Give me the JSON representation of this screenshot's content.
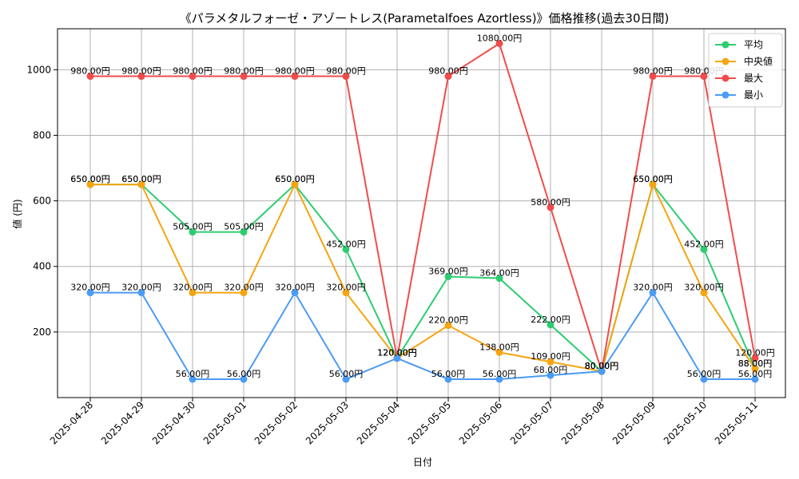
{
  "chart_data": {
    "type": "line",
    "title": "《パラメタルフォーゼ・アゾートレス(Parametalfoes Azortless)》価格推移(過去30日間)",
    "xlabel": "日付",
    "ylabel": "値 (円)",
    "label_suffix": "円",
    "categories": [
      "2025-04-28",
      "2025-04-29",
      "2025-04-30",
      "2025-05-01",
      "2025-05-02",
      "2025-05-03",
      "2025-05-04",
      "2025-05-05",
      "2025-05-06",
      "2025-05-07",
      "2025-05-08",
      "2025-05-09",
      "2025-05-10",
      "2025-05-11"
    ],
    "yticks": [
      200,
      400,
      600,
      800,
      1000
    ],
    "ylim": [
      0,
      1125
    ],
    "grid": true,
    "legend_position": "top-right",
    "series": [
      {
        "name": "平均",
        "color": "#2ecc71",
        "values": [
          650,
          650,
          505,
          505,
          650,
          452,
          120,
          369,
          364,
          222,
          80,
          650,
          452,
          88
        ]
      },
      {
        "name": "中央値",
        "color": "#f5a511",
        "values": [
          650,
          650,
          320,
          320,
          650,
          320,
          120,
          220,
          138,
          109,
          80,
          650,
          320,
          88
        ]
      },
      {
        "name": "最大",
        "color": "#f14c4c",
        "values": [
          980,
          980,
          980,
          980,
          980,
          980,
          120,
          980,
          1080,
          580,
          80,
          980,
          980,
          120
        ]
      },
      {
        "name": "最小",
        "color": "#4c9bf5",
        "values": [
          320,
          320,
          56,
          56,
          320,
          56,
          120,
          56,
          56,
          68,
          80,
          320,
          56,
          56
        ]
      }
    ]
  }
}
